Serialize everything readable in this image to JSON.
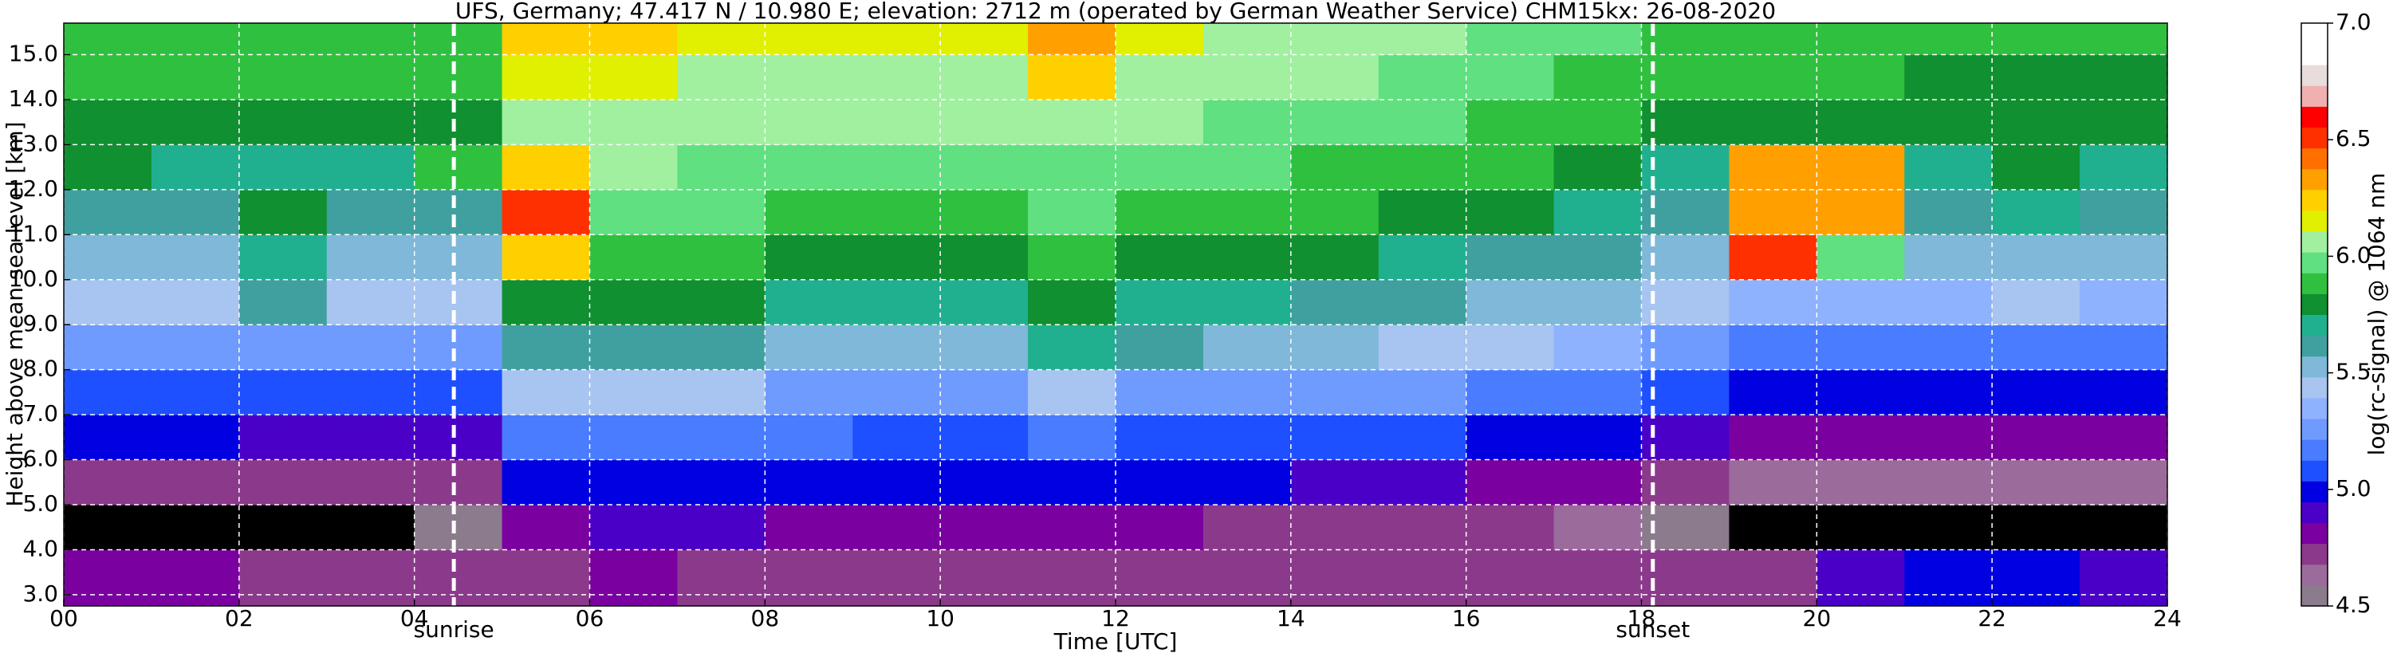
{
  "chart_data": {
    "type": "heatmap",
    "title": "UFS, Germany; 47.417 N / 10.980 E; elevation: 2712 m  (operated by German Weather Service)    CHM15kx: 26-08-2020",
    "x_label": "Time [UTC]",
    "y_label": "Height above mean sea level [km]",
    "colorbar_label": "log(rc-signal) @ 1064 nm",
    "xbins": [
      0,
      1,
      2,
      3,
      4,
      5,
      6,
      7,
      8,
      9,
      10,
      11,
      12,
      13,
      14,
      15,
      16,
      17,
      18,
      19,
      20,
      21,
      22,
      23,
      24
    ],
    "ybins": [
      2.75,
      4,
      5,
      6,
      7,
      8,
      9,
      10,
      11,
      12,
      13,
      14,
      15,
      15.7
    ],
    "z": [
      [
        4.8,
        4.8,
        4.75,
        4.75,
        4.7,
        4.7,
        4.8,
        4.75,
        4.7,
        4.7,
        4.7,
        4.75,
        4.75,
        4.7,
        4.7,
        4.7,
        4.7,
        4.7,
        4.7,
        4.75,
        4.9,
        4.95,
        4.95,
        4.9
      ],
      [
        4.4,
        4.4,
        4.4,
        4.45,
        4.5,
        4.8,
        4.9,
        4.9,
        4.85,
        4.8,
        4.8,
        4.85,
        4.8,
        4.75,
        4.75,
        4.75,
        4.7,
        4.65,
        4.5,
        4.4,
        4.4,
        4.4,
        4.4,
        4.4
      ],
      [
        4.75,
        4.75,
        4.7,
        4.7,
        4.7,
        5.0,
        5.0,
        5.0,
        4.95,
        4.95,
        4.95,
        5.0,
        5.0,
        4.95,
        4.9,
        4.9,
        4.85,
        4.8,
        4.7,
        4.6,
        4.6,
        4.6,
        4.6,
        4.6
      ],
      [
        4.95,
        4.95,
        4.9,
        4.9,
        4.9,
        5.2,
        5.2,
        5.2,
        5.15,
        5.1,
        5.1,
        5.2,
        5.1,
        5.1,
        5.1,
        5.05,
        5.0,
        4.95,
        4.9,
        4.85,
        4.85,
        4.85,
        4.85,
        4.85
      ],
      [
        5.1,
        5.1,
        5.1,
        5.05,
        5.05,
        5.4,
        5.4,
        5.4,
        5.3,
        5.3,
        5.3,
        5.4,
        5.3,
        5.3,
        5.3,
        5.25,
        5.2,
        5.15,
        5.05,
        5.0,
        5.0,
        5.0,
        5.0,
        5.0
      ],
      [
        5.3,
        5.3,
        5.25,
        5.25,
        5.25,
        5.6,
        5.6,
        5.6,
        5.5,
        5.5,
        5.5,
        5.7,
        5.6,
        5.5,
        5.5,
        5.45,
        5.4,
        5.35,
        5.25,
        5.2,
        5.2,
        5.2,
        5.2,
        5.2
      ],
      [
        5.45,
        5.45,
        5.6,
        5.4,
        5.4,
        5.75,
        5.75,
        5.75,
        5.7,
        5.7,
        5.7,
        5.75,
        5.7,
        5.7,
        5.65,
        5.6,
        5.55,
        5.5,
        5.4,
        5.35,
        5.35,
        5.35,
        5.4,
        5.35
      ],
      [
        5.55,
        5.55,
        5.7,
        5.5,
        5.5,
        6.2,
        5.85,
        5.85,
        5.8,
        5.8,
        5.8,
        5.85,
        5.8,
        5.8,
        5.75,
        5.7,
        5.65,
        5.6,
        5.5,
        6.5,
        6.0,
        5.5,
        5.5,
        5.5
      ],
      [
        5.65,
        5.65,
        5.75,
        5.6,
        5.6,
        6.5,
        6.0,
        5.95,
        5.9,
        5.9,
        5.9,
        5.95,
        5.9,
        5.9,
        5.85,
        5.8,
        5.75,
        5.7,
        5.6,
        6.3,
        6.3,
        5.6,
        5.7,
        5.6
      ],
      [
        5.75,
        5.7,
        5.7,
        5.7,
        5.9,
        6.2,
        6.05,
        6.0,
        6.0,
        6.0,
        6.0,
        6.0,
        6.0,
        5.95,
        5.9,
        5.9,
        5.85,
        5.8,
        5.7,
        6.3,
        6.3,
        5.7,
        5.75,
        5.7
      ],
      [
        5.8,
        5.8,
        5.8,
        5.8,
        5.8,
        6.1,
        6.1,
        6.05,
        6.05,
        6.05,
        6.05,
        6.1,
        6.05,
        6.0,
        6.0,
        5.95,
        5.9,
        5.85,
        5.8,
        5.8,
        5.8,
        5.75,
        5.75,
        5.75
      ],
      [
        5.85,
        5.85,
        5.85,
        5.85,
        5.85,
        6.15,
        6.15,
        6.1,
        6.1,
        6.1,
        6.1,
        6.2,
        6.1,
        6.05,
        6.05,
        6.0,
        5.95,
        5.9,
        5.85,
        5.85,
        5.85,
        5.8,
        5.8,
        5.8
      ],
      [
        5.9,
        5.9,
        5.9,
        5.9,
        5.9,
        6.2,
        6.2,
        6.15,
        6.15,
        6.15,
        6.15,
        6.3,
        6.15,
        6.1,
        6.1,
        6.05,
        6.0,
        5.95,
        5.9,
        5.9,
        5.9,
        5.85,
        5.85,
        5.85
      ]
    ],
    "xlim": [
      0,
      24
    ],
    "ylim": [
      2.75,
      15.7
    ],
    "xticks": [
      {
        "value": 0,
        "label": "00"
      },
      {
        "value": 2,
        "label": "02"
      },
      {
        "value": 4,
        "label": "04"
      },
      {
        "value": 6,
        "label": "06"
      },
      {
        "value": 8,
        "label": "08"
      },
      {
        "value": 10,
        "label": "10"
      },
      {
        "value": 12,
        "label": "12"
      },
      {
        "value": 14,
        "label": "14"
      },
      {
        "value": 16,
        "label": "16"
      },
      {
        "value": 18,
        "label": "18"
      },
      {
        "value": 20,
        "label": "20"
      },
      {
        "value": 22,
        "label": "22"
      },
      {
        "value": 24,
        "label": "24"
      }
    ],
    "yticks": [
      {
        "value": 3,
        "label": "3.0"
      },
      {
        "value": 4,
        "label": "4.0"
      },
      {
        "value": 5,
        "label": "5.0"
      },
      {
        "value": 6,
        "label": "6.0"
      },
      {
        "value": 7,
        "label": "7.0"
      },
      {
        "value": 8,
        "label": "8.0"
      },
      {
        "value": 9,
        "label": "9.0"
      },
      {
        "value": 10,
        "label": "10.0"
      },
      {
        "value": 11,
        "label": "11.0"
      },
      {
        "value": 12,
        "label": "12.0"
      },
      {
        "value": 13,
        "label": "13.0"
      },
      {
        "value": 14,
        "label": "14.0"
      },
      {
        "value": 15,
        "label": "15.0"
      }
    ],
    "clim": [
      4.5,
      7.0
    ],
    "cticks": [
      4.5,
      {
        "value": 5,
        "label": "5.0"
      },
      5.5,
      {
        "value": 6,
        "label": "6.0"
      },
      6.5,
      {
        "value": 7,
        "label": "7.0"
      }
    ],
    "colormap": [
      "#8c7b8c",
      "#9b6b9b",
      "#8b3a8b",
      "#7a00a0",
      "#4b00c8",
      "#0000e0",
      "#1e50ff",
      "#4a7cff",
      "#6f9bff",
      "#8fb2ff",
      "#a8c4f0",
      "#7fb8d8",
      "#40a0a0",
      "#20b090",
      "#109030",
      "#30c040",
      "#60e080",
      "#a0f0a0",
      "#e0f000",
      "#ffd000",
      "#ffa000",
      "#ff7000",
      "#ff3000",
      "#ff0000",
      "#f0b0b0",
      "#e8dcdc",
      "#ffffff",
      "#ffffff"
    ],
    "under_color": "#000000",
    "grid": true,
    "vlines": [
      {
        "x": 4.45,
        "label": "sunrise"
      },
      {
        "x": 18.13,
        "label": "sunset"
      }
    ]
  }
}
